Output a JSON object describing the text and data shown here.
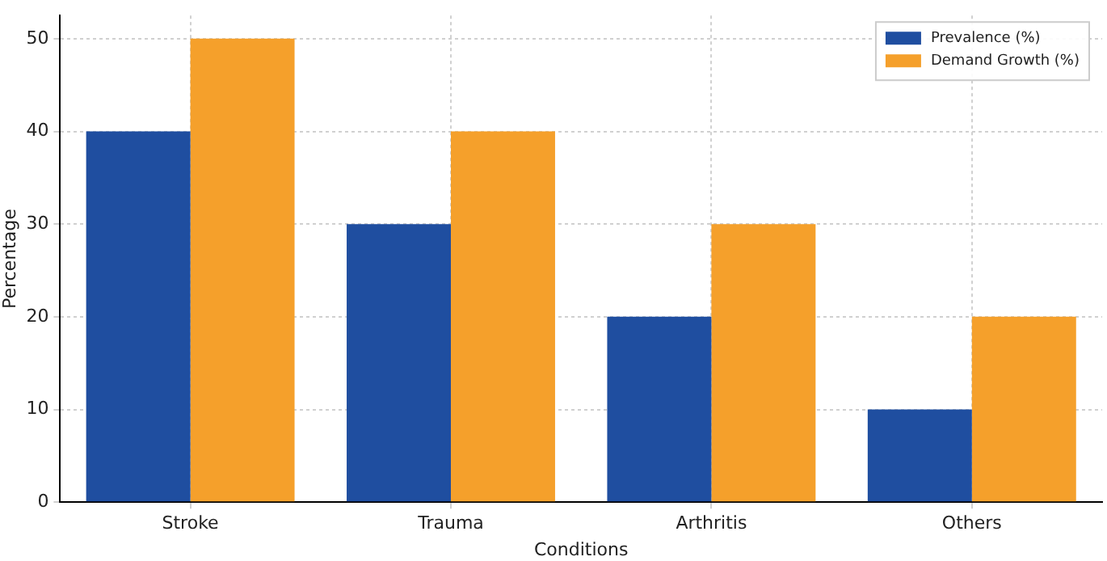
{
  "chart_data": {
    "type": "bar",
    "xlabel": "Conditions",
    "ylabel": "Percentage",
    "categories": [
      "Stroke",
      "Trauma",
      "Arthritis",
      "Others"
    ],
    "series": [
      {
        "name": "Prevalence (%)",
        "color": "#1f4ea0",
        "values": [
          40,
          30,
          20,
          10
        ]
      },
      {
        "name": "Demand Growth (%)",
        "color": "#f5a02b",
        "values": [
          50,
          40,
          30,
          20
        ]
      }
    ],
    "ylim": [
      0,
      52.5
    ],
    "yticks": [
      0,
      10,
      20,
      30,
      40,
      50
    ],
    "grid": true,
    "legend": "top right"
  }
}
